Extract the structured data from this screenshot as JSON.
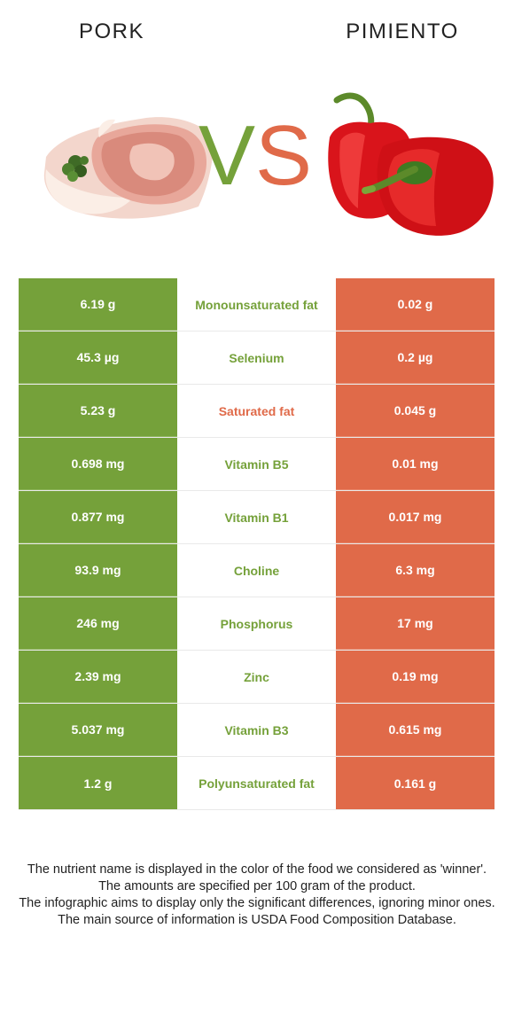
{
  "titles": {
    "left": "PORK",
    "right": "PIMIENTO"
  },
  "vs": {
    "v": "V",
    "s": "S"
  },
  "colors": {
    "left": "#75a13a",
    "right": "#e06a49"
  },
  "rows": [
    {
      "left": "6.19 g",
      "nutrient": "Monounsaturated fat",
      "winner": "left",
      "right": "0.02 g"
    },
    {
      "left": "45.3 µg",
      "nutrient": "Selenium",
      "winner": "left",
      "right": "0.2 µg"
    },
    {
      "left": "5.23 g",
      "nutrient": "Saturated fat",
      "winner": "right",
      "right": "0.045 g"
    },
    {
      "left": "0.698 mg",
      "nutrient": "Vitamin B5",
      "winner": "left",
      "right": "0.01 mg"
    },
    {
      "left": "0.877 mg",
      "nutrient": "Vitamin B1",
      "winner": "left",
      "right": "0.017 mg"
    },
    {
      "left": "93.9 mg",
      "nutrient": "Choline",
      "winner": "left",
      "right": "6.3 mg"
    },
    {
      "left": "246 mg",
      "nutrient": "Phosphorus",
      "winner": "left",
      "right": "17 mg"
    },
    {
      "left": "2.39 mg",
      "nutrient": "Zinc",
      "winner": "left",
      "right": "0.19 mg"
    },
    {
      "left": "5.037 mg",
      "nutrient": "Vitamin B3",
      "winner": "left",
      "right": "0.615 mg"
    },
    {
      "left": "1.2 g",
      "nutrient": "Polyunsaturated fat",
      "winner": "left",
      "right": "0.161 g"
    }
  ],
  "notes": [
    "The nutrient name is displayed in the color of the food we considered as 'winner'.",
    "The amounts are specified per 100 gram of the product.",
    "The infographic aims to display only the significant differences, ignoring minor ones.",
    "The main source of information is USDA Food Composition Database."
  ]
}
